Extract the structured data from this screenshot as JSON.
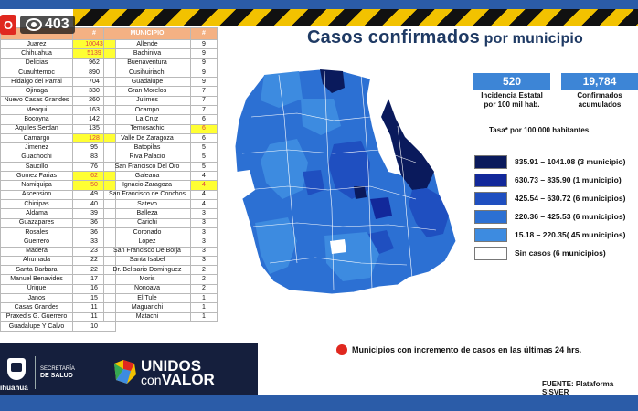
{
  "stream": {
    "live_label": "O",
    "viewers": "403"
  },
  "title": {
    "main": "Casos confirmados",
    "sub": " por municipio"
  },
  "left_table": {
    "header": [
      "",
      "#"
    ],
    "rows": [
      [
        "Juarez",
        "10043",
        true
      ],
      [
        "Chihuahua",
        "5139",
        true
      ],
      [
        "Delicias",
        "962",
        false
      ],
      [
        "Cuauhtemoc",
        "890",
        false
      ],
      [
        "Hidalgo del Parral",
        "704",
        false
      ],
      [
        "Ojinaga",
        "330",
        false
      ],
      [
        "Nuevo Casas Grandes",
        "260",
        false
      ],
      [
        "Meoqui",
        "163",
        false
      ],
      [
        "Bocoyna",
        "142",
        false
      ],
      [
        "Aquiles Serdan",
        "135",
        false
      ],
      [
        "Camargo",
        "128",
        true
      ],
      [
        "Jimenez",
        "95",
        false
      ],
      [
        "Guachochi",
        "83",
        false
      ],
      [
        "Saucillo",
        "76",
        false
      ],
      [
        "Gomez Farias",
        "62",
        true
      ],
      [
        "Namiquipa",
        "50",
        true
      ],
      [
        "Ascension",
        "49",
        false
      ],
      [
        "Chinipas",
        "40",
        false
      ],
      [
        "Aldama",
        "39",
        false
      ],
      [
        "Guazapares",
        "36",
        false
      ],
      [
        "Rosales",
        "36",
        false
      ],
      [
        "Guerrero",
        "33",
        false
      ],
      [
        "Madera",
        "23",
        false
      ],
      [
        "Ahumada",
        "22",
        false
      ],
      [
        "Santa Barbara",
        "22",
        false
      ],
      [
        "Manuel Benavides",
        "17",
        false
      ],
      [
        "Urique",
        "16",
        false
      ],
      [
        "Janos",
        "15",
        false
      ],
      [
        "Casas Grandes",
        "11",
        false
      ],
      [
        "Praxedis G. Guerrero",
        "11",
        false
      ],
      [
        "Guadalupe Y Calvo",
        "10",
        false
      ]
    ]
  },
  "right_table": {
    "header": [
      "MUNICIPIO",
      "#"
    ],
    "rows": [
      [
        "Allende",
        "9",
        false
      ],
      [
        "Bachiniva",
        "9",
        false
      ],
      [
        "Buenaventura",
        "9",
        false
      ],
      [
        "Cusihuiriachi",
        "9",
        false
      ],
      [
        "Guadalupe",
        "9",
        false
      ],
      [
        "Gran Morelos",
        "7",
        false
      ],
      [
        "Julimes",
        "7",
        false
      ],
      [
        "Ocampo",
        "7",
        false
      ],
      [
        "La Cruz",
        "6",
        false
      ],
      [
        "Temosachic",
        "6",
        true
      ],
      [
        "Valle De Zaragoza",
        "6",
        false
      ],
      [
        "Batopilas",
        "5",
        false
      ],
      [
        "Riva Palacio",
        "5",
        false
      ],
      [
        "San Francisco Del Oro",
        "5",
        false
      ],
      [
        "Galeana",
        "4",
        false
      ],
      [
        "Ignacio Zaragoza",
        "4",
        true
      ],
      [
        "San Francisco de Conchos",
        "4",
        false
      ],
      [
        "Satevo",
        "4",
        false
      ],
      [
        "Balleza",
        "3",
        false
      ],
      [
        "Carichi",
        "3",
        false
      ],
      [
        "Coronado",
        "3",
        false
      ],
      [
        "Lopez",
        "3",
        false
      ],
      [
        "San Francisco De Borja",
        "3",
        false
      ],
      [
        "Santa Isabel",
        "3",
        false
      ],
      [
        "Dr. Belisario Dominguez",
        "2",
        false
      ],
      [
        "Moris",
        "2",
        false
      ],
      [
        "Nonoava",
        "2",
        false
      ],
      [
        "El Tule",
        "1",
        false
      ],
      [
        "Maguarichi",
        "1",
        false
      ],
      [
        "Matachi",
        "1",
        false
      ]
    ]
  },
  "stats": [
    {
      "value": "520",
      "label_line1": "Incidencia Estatal",
      "label_line2": "por 100 mil hab."
    },
    {
      "value": "19,784",
      "label_line1": "Confirmados",
      "label_line2": "acumulados"
    }
  ],
  "tasa": "Tasa* por 100 000 habitantes.",
  "legend": [
    {
      "label": "835.91 – 1041.08 (3 municipio)",
      "color": "#0a1a5c"
    },
    {
      "label": "630.73 – 835.90 (1 municipio)",
      "color": "#12289a"
    },
    {
      "label": "425.54 – 630.72 (6 municipios)",
      "color": "#1f4fc0"
    },
    {
      "label": "220.36 – 425.53 (6 municipios)",
      "color": "#2c70d3"
    },
    {
      "label": "15.18 – 220.35( 45 municipios)",
      "color": "#3d8be0"
    },
    {
      "label": "Sin casos (6 municipios)",
      "color": "#ffffff"
    }
  ],
  "note": "Municipios con incremento de casos en las últimas 24 hrs.",
  "fuente": "FUENTE: Plataforma SISVER",
  "footer": {
    "state": "ihuahua",
    "secretaria_line1": "SECRETARÍA",
    "secretaria_line2": "DE SALUD",
    "logo_line1": "UNIDOS",
    "logo_con": "con",
    "logo_valor": "VALOR"
  }
}
